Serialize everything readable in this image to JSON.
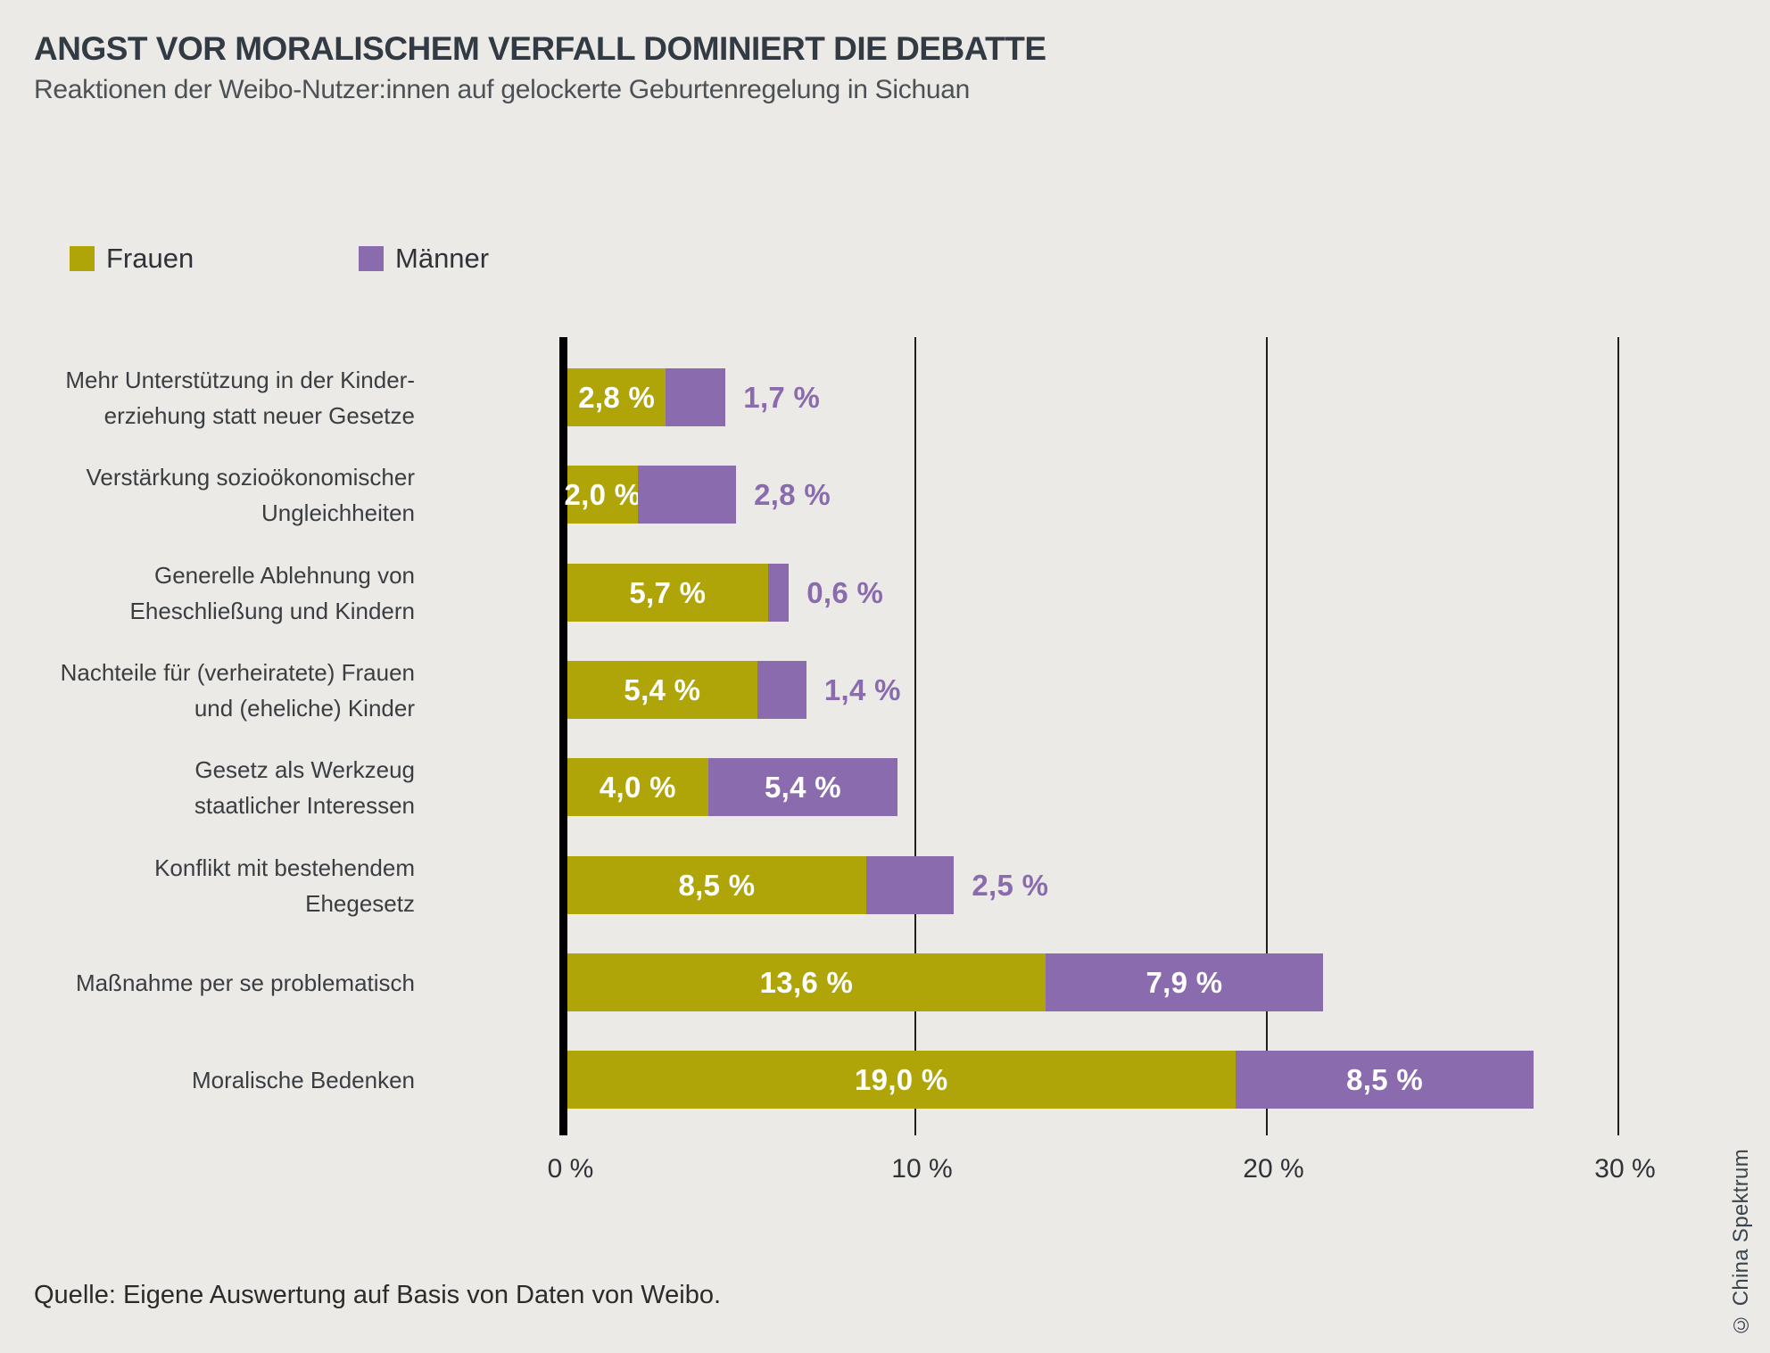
{
  "header": {
    "title": "ANGST VOR MORALISCHEM VERFALL DOMINIERT DIE DEBATTE",
    "subtitle": "Reaktionen der Weibo-Nutzer:innen auf gelockerte Geburtenregelung in Sichuan"
  },
  "legend": {
    "items": [
      {
        "label": "Frauen",
        "color": "#AFA408"
      },
      {
        "label": "Männer",
        "color": "#8A6CAE"
      }
    ]
  },
  "chart_data": {
    "type": "bar",
    "orientation": "horizontal",
    "stacked": true,
    "xlabel": "",
    "ylabel": "",
    "xlim": [
      0,
      30
    ],
    "xtick_values": [
      0,
      10,
      20,
      30
    ],
    "xtick_labels": [
      "0 %",
      "10 %",
      "20 %",
      "30 %"
    ],
    "grid": "vertical",
    "categories": [
      {
        "lines": [
          "Mehr Unterstützung in der Kinder-",
          "erziehung statt neuer Gesetze"
        ]
      },
      {
        "lines": [
          "Verstärkung sozioökonomischer",
          "Ungleichheiten"
        ]
      },
      {
        "lines": [
          "Generelle Ablehnung von",
          "Eheschließung und Kindern"
        ]
      },
      {
        "lines": [
          "Nachteile für (verheiratete) Frauen",
          "und (eheliche) Kinder"
        ]
      },
      {
        "lines": [
          "Gesetz als Werkzeug",
          "staatlicher Interessen"
        ]
      },
      {
        "lines": [
          "Konflikt mit bestehendem",
          "Ehegesetz"
        ]
      },
      {
        "lines": [
          "Maßnahme per se problematisch"
        ]
      },
      {
        "lines": [
          "Moralische Bedenken"
        ]
      }
    ],
    "series": [
      {
        "name": "Frauen",
        "color": "#AFA408",
        "values": [
          2.8,
          2.0,
          5.7,
          5.4,
          4.0,
          8.5,
          13.6,
          19.0
        ],
        "labels": [
          "2,8 %",
          "2,0 %",
          "5,7 %",
          "5,4 %",
          "4,0 %",
          "8,5 %",
          "13,6 %",
          "19,0 %"
        ],
        "label_placement": [
          "inside",
          "inside",
          "inside",
          "inside",
          "inside",
          "inside",
          "inside",
          "inside"
        ]
      },
      {
        "name": "Männer",
        "color": "#8A6CAE",
        "values": [
          1.7,
          2.8,
          0.6,
          1.4,
          5.4,
          2.5,
          7.9,
          8.5
        ],
        "labels": [
          "1,7 %",
          "2,8 %",
          "0,6 %",
          "1,4 %",
          "5,4 %",
          "2,5 %",
          "7,9 %",
          "8,5 %"
        ],
        "label_placement": [
          "outside",
          "outside",
          "outside",
          "outside",
          "inside",
          "outside",
          "inside",
          "inside"
        ]
      }
    ]
  },
  "footer": {
    "source": "Quelle: Eigene Auswertung auf Basis von Daten von Weibo."
  },
  "credit": "© China Spektrum"
}
